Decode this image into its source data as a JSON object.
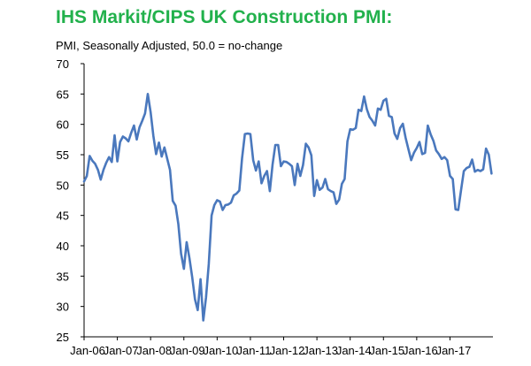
{
  "title": "IHS Markit/CIPS UK Construction PMI:",
  "subtitle": "PMI, Seasonally Adjusted, 50.0 = no-change",
  "colors": {
    "title": "#22b14c",
    "line": "#4a78bd",
    "axis": "#000000"
  },
  "chart_data": {
    "type": "line",
    "title": "IHS Markit/CIPS UK Construction PMI:",
    "subtitle": "PMI, Seasonally Adjusted, 50.0 = no-change",
    "xlabel": "",
    "ylabel": "",
    "ylim": [
      25,
      70
    ],
    "yticks": [
      25,
      30,
      35,
      40,
      45,
      50,
      55,
      60,
      65,
      70
    ],
    "xticks": [
      "Jan-06",
      "Jan-07",
      "Jan-08",
      "Jan-09",
      "Jan-10",
      "Jan-11",
      "Jan-12",
      "Jan-13",
      "Jan-14",
      "Jan-15",
      "Jan-16",
      "Jan-17"
    ],
    "x_start": "Jan-06",
    "frequency": "monthly",
    "grid": false,
    "legend": "none",
    "values": [
      50.6,
      51.5,
      54.8,
      54.0,
      53.5,
      52.5,
      50.9,
      52.5,
      53.7,
      54.6,
      53.8,
      58.2,
      53.9,
      57.1,
      58.0,
      57.7,
      57.2,
      58.6,
      59.8,
      57.5,
      59.5,
      60.6,
      61.8,
      65.0,
      62.0,
      58.1,
      55.1,
      57.0,
      54.7,
      56.2,
      54.3,
      52.5,
      47.4,
      46.6,
      43.6,
      38.7,
      36.2,
      40.6,
      38.0,
      34.8,
      31.2,
      29.4,
      34.5,
      27.7,
      31.5,
      37.0,
      45.0,
      46.7,
      47.5,
      47.3,
      45.9,
      46.7,
      46.8,
      47.1,
      48.3,
      48.6,
      49.1,
      54.4,
      58.4,
      58.5,
      58.4,
      54.1,
      52.4,
      53.9,
      50.3,
      51.5,
      52.3,
      49.0,
      53.4,
      56.6,
      56.6,
      53.1,
      53.9,
      53.8,
      53.5,
      53.1,
      50.0,
      53.5,
      51.5,
      53.3,
      56.8,
      56.2,
      54.9,
      48.2,
      50.8,
      49.2,
      49.6,
      51.0,
      49.3,
      49.0,
      48.8,
      46.9,
      47.6,
      50.2,
      51.0,
      57.2,
      59.2,
      59.1,
      59.4,
      62.4,
      62.2,
      64.6,
      62.5,
      61.2,
      60.6,
      59.8,
      62.6,
      62.4,
      63.9,
      64.2,
      61.4,
      61.2,
      58.5,
      57.6,
      59.4,
      60.1,
      57.8,
      55.9,
      54.1,
      55.3,
      56.1,
      57.1,
      55.1,
      55.3,
      59.8,
      58.4,
      57.3,
      55.7,
      55.1,
      54.3,
      54.6,
      54.1,
      51.5,
      51.0,
      46.0,
      45.9,
      49.2,
      52.3,
      52.8,
      53.0,
      54.2,
      52.2,
      52.5,
      52.3,
      52.6,
      56.0,
      55.0,
      51.9
    ]
  }
}
